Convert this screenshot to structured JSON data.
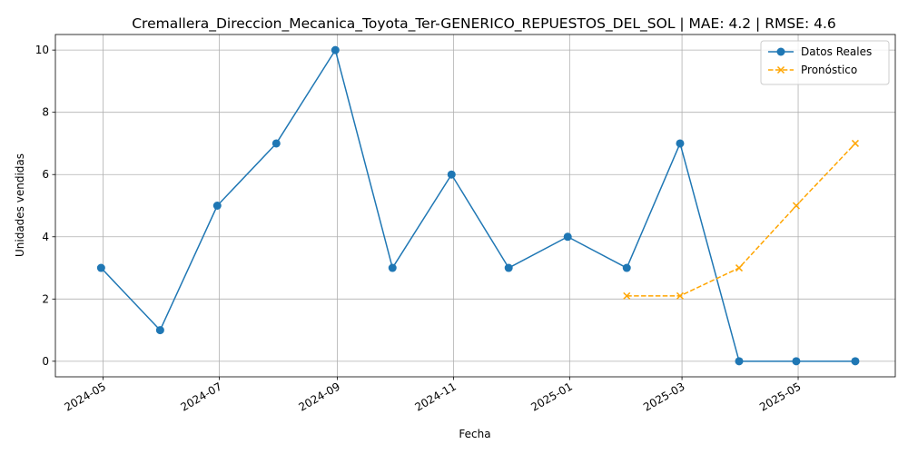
{
  "chart_data": {
    "type": "line",
    "title": "Cremallera_Direccion_Mecanica_Toyota_Ter-GENERICO_REPUESTOS_DEL_SOL | MAE: 4.2 | RMSE: 4.6",
    "xlabel": "Fecha",
    "ylabel": "Unidades vendidas",
    "xlim": [
      "2024-04-06",
      "2025-06-21"
    ],
    "ylim": [
      -0.5,
      10.5
    ],
    "x_ticks": [
      "2024-05",
      "2024-07",
      "2024-09",
      "2024-11",
      "2025-01",
      "2025-03",
      "2025-05"
    ],
    "x_tick_dates": [
      "2024-05-01",
      "2024-07-01",
      "2024-09-01",
      "2024-11-01",
      "2025-01-01",
      "2025-03-01",
      "2025-05-01"
    ],
    "y_ticks": [
      0,
      2,
      4,
      6,
      8,
      10
    ],
    "grid": true,
    "legend_position": "top-right",
    "series": [
      {
        "name": "Datos Reales",
        "color": "#1f77b4",
        "line_style": "solid",
        "marker": "circle",
        "x": [
          "2024-04-30",
          "2024-05-31",
          "2024-06-30",
          "2024-07-31",
          "2024-08-31",
          "2024-09-30",
          "2024-10-31",
          "2024-11-30",
          "2024-12-31",
          "2025-01-31",
          "2025-02-28",
          "2025-03-31",
          "2025-04-30",
          "2025-05-31"
        ],
        "values": [
          3,
          1,
          5,
          7,
          10,
          3,
          6,
          3,
          4,
          3,
          7,
          0,
          0,
          0
        ]
      },
      {
        "name": "Pronóstico",
        "color": "#ffa500",
        "line_style": "dashed",
        "marker": "x",
        "x": [
          "2025-01-31",
          "2025-02-28",
          "2025-03-31",
          "2025-04-30",
          "2025-05-31"
        ],
        "values": [
          2.1,
          2.1,
          3,
          5,
          7
        ]
      }
    ]
  }
}
